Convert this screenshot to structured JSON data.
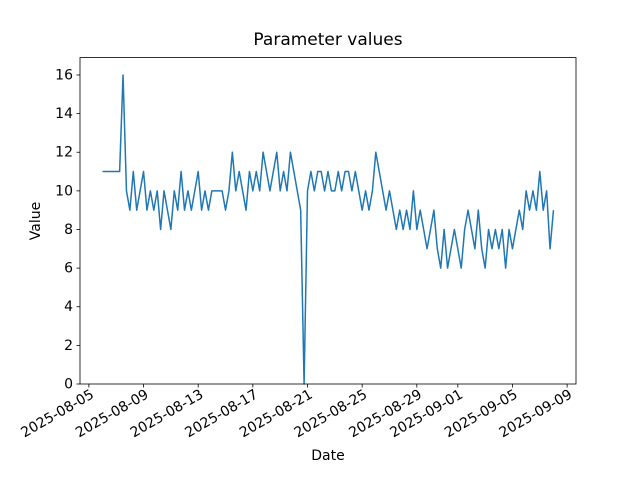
{
  "chart_data": {
    "type": "line",
    "title": "Parameter values",
    "xlabel": "Date",
    "ylabel": "Value",
    "line_color": "#1f77b4",
    "axis_color": "#000000",
    "background": "#ffffff",
    "grid": false,
    "legend_position": "none",
    "x_start": "2025-08-06T00:00:00Z",
    "step_hours": 6,
    "values": [
      11,
      11,
      11,
      11,
      11,
      11,
      16,
      10,
      9,
      11,
      9,
      10,
      11,
      9,
      10,
      9,
      10,
      8,
      10,
      9,
      8,
      10,
      9,
      11,
      9,
      10,
      9,
      10,
      11,
      9,
      10,
      9,
      10,
      10,
      10,
      10,
      9,
      10,
      12,
      10,
      11,
      10,
      9,
      11,
      10,
      11,
      10,
      12,
      11,
      10,
      11,
      12,
      10,
      11,
      10,
      12,
      11,
      10,
      9,
      0,
      10,
      11,
      10,
      11,
      11,
      10,
      11,
      10,
      10,
      11,
      10,
      11,
      11,
      10,
      11,
      10,
      9,
      10,
      9,
      10,
      12,
      11,
      10,
      9,
      10,
      9,
      8,
      9,
      8,
      9,
      8,
      10,
      8,
      9,
      8,
      7,
      8,
      9,
      7,
      6,
      8,
      6,
      7,
      8,
      7,
      6,
      8,
      9,
      8,
      7,
      9,
      7,
      6,
      8,
      7,
      8,
      7,
      8,
      6,
      8,
      7,
      8,
      9,
      8,
      10,
      9,
      10,
      9,
      11,
      9,
      10,
      7,
      9
    ],
    "x_tick_labels": [
      "2025-08-05",
      "2025-08-09",
      "2025-08-13",
      "2025-08-17",
      "2025-08-21",
      "2025-08-25",
      "2025-08-29",
      "2025-09-01",
      "2025-09-05",
      "2025-09-09"
    ],
    "x_tick_rotation_deg": 30,
    "y_ticks": [
      0,
      2,
      4,
      6,
      8,
      10,
      12,
      14,
      16
    ],
    "ylim": [
      0,
      16.9
    ],
    "xlim": [
      "2025-08-04T08:24:00Z",
      "2025-09-09T15:36:00Z"
    ]
  }
}
